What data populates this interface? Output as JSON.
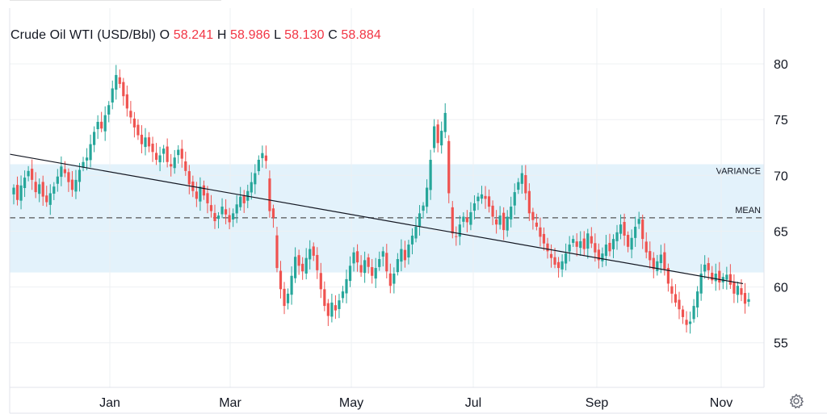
{
  "legend": {
    "symbol": "Crude Oil WTI (USD/Bbl)",
    "o_label": "O",
    "o_value": "58.241",
    "h_label": "H",
    "h_value": "58.986",
    "l_label": "L",
    "l_value": "58.130",
    "c_label": "C",
    "c_value": "58.884"
  },
  "settings_icon": "gear-icon",
  "colors": {
    "up": "#26a69a",
    "down": "#ef5350",
    "band": "#e3f2fb",
    "trend": "#131722",
    "mean": "#555555"
  },
  "chart_data": {
    "type": "candlestick",
    "title": "Crude Oil WTI (USD/Bbl)",
    "xlabel": "",
    "ylabel": "",
    "y_ticks": [
      55,
      60,
      65,
      70,
      75,
      80
    ],
    "x_ticks": [
      "Jan",
      "Mar",
      "May",
      "Jul",
      "Sep",
      "Nov"
    ],
    "ylim": [
      51,
      85
    ],
    "grid": true,
    "y_axis_position": "right",
    "bands": [
      {
        "label": "VARIANCE",
        "from": 61.3,
        "to": 71.0
      }
    ],
    "reference_lines": [
      {
        "label": "MEAN",
        "value": 66.2,
        "style": "dashed"
      }
    ],
    "trend_line": {
      "start": 71.9,
      "end": 60.3
    },
    "closes": [
      68.9,
      67.8,
      69.1,
      69.8,
      70.4,
      69.6,
      68.5,
      69.2,
      68.1,
      67.6,
      68.4,
      69.0,
      69.9,
      70.8,
      70.2,
      69.4,
      68.7,
      69.6,
      70.5,
      71.2,
      71.6,
      72.8,
      73.9,
      74.8,
      74.2,
      75.4,
      76.3,
      77.8,
      79.0,
      78.2,
      77.1,
      76.0,
      75.2,
      74.3,
      73.6,
      72.8,
      73.4,
      72.6,
      72.1,
      71.4,
      71.8,
      72.4,
      71.2,
      70.8,
      71.6,
      72.3,
      71.5,
      70.4,
      69.2,
      68.6,
      67.9,
      69.0,
      68.2,
      67.5,
      66.8,
      65.9,
      66.4,
      67.2,
      66.5,
      65.8,
      66.6,
      67.4,
      68.1,
      67.5,
      68.6,
      69.4,
      70.2,
      71.4,
      72.0,
      71.3,
      66.8,
      66.2,
      61.7,
      59.8,
      58.3,
      59.4,
      61.0,
      62.7,
      61.9,
      61.4,
      62.6,
      63.4,
      62.8,
      61.5,
      59.8,
      58.3,
      57.4,
      58.6,
      57.9,
      58.8,
      59.6,
      60.7,
      61.9,
      63.1,
      62.2,
      61.3,
      62.4,
      61.8,
      61.0,
      61.7,
      62.5,
      63.2,
      61.4,
      60.1,
      61.2,
      62.5,
      63.4,
      62.4,
      63.8,
      64.6,
      65.4,
      66.6,
      67.3,
      68.9,
      71.4,
      74.4,
      72.9,
      74.0,
      75.6,
      68.4,
      64.8,
      64.5,
      65.6,
      66.3,
      65.8,
      66.7,
      67.5,
      68.1,
      68.3,
      67.9,
      67.2,
      66.3,
      65.6,
      66.4,
      65.1,
      66.3,
      67.2,
      68.5,
      69.4,
      70.2,
      68.4,
      66.6,
      66.0,
      65.4,
      64.5,
      63.9,
      63.2,
      62.6,
      62.0,
      61.7,
      62.3,
      63.0,
      63.8,
      64.3,
      63.6,
      64.1,
      63.4,
      64.8,
      63.9,
      63.1,
      62.4,
      63.0,
      63.8,
      63.2,
      64.3,
      64.9,
      65.6,
      64.6,
      63.6,
      64.4,
      65.4,
      66.1,
      64.3,
      63.1,
      62.4,
      61.6,
      62.3,
      62.9,
      61.6,
      60.3,
      59.4,
      58.6,
      58.0,
      57.3,
      56.6,
      56.9,
      58.3,
      59.6,
      61.2,
      62.0,
      61.5,
      60.6,
      61.2,
      60.4,
      60.9,
      61.1,
      60.2,
      59.4,
      60.1,
      59.3,
      58.5,
      58.9
    ]
  }
}
